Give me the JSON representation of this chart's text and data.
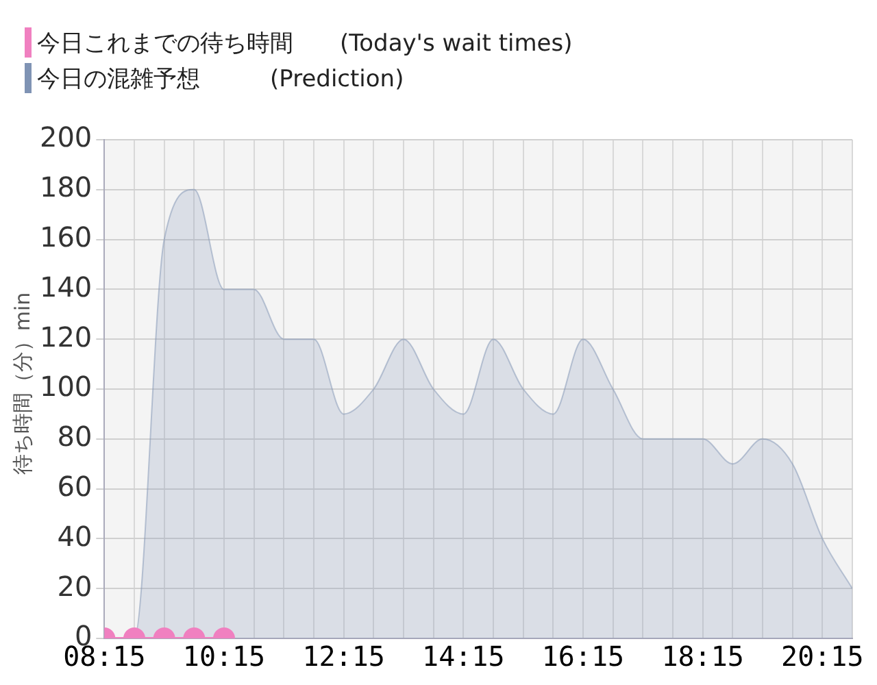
{
  "chart_data": {
    "type": "area",
    "ylabel": "待ち時間（分）min",
    "x": [
      8.25,
      8.75,
      9.25,
      9.75,
      10.25,
      10.75,
      11.25,
      11.75,
      12.25,
      12.75,
      13.25,
      13.75,
      14.25,
      14.75,
      15.25,
      15.75,
      16.25,
      16.75,
      17.25,
      17.75,
      18.25,
      18.75,
      19.25,
      19.75,
      20.25,
      20.75
    ],
    "series": [
      {
        "name": "今日の混雑予想　　　(Prediction)",
        "color": "#7f93b4",
        "marker": "none",
        "values": [
          0,
          0,
          160,
          180,
          140,
          140,
          120,
          120,
          90,
          100,
          120,
          100,
          90,
          120,
          100,
          90,
          120,
          100,
          80,
          80,
          80,
          70,
          80,
          70,
          40,
          20
        ]
      },
      {
        "name": "今日これまでの待ち時間　　(Today's wait times)",
        "type": "line",
        "color": "#f080c0",
        "marker": "circle",
        "x": [
          8.25,
          8.75,
          9.25,
          9.75,
          10.25
        ],
        "values": [
          0,
          0,
          0,
          0,
          0
        ]
      }
    ],
    "xlim": [
      8.25,
      20.75
    ],
    "xticks": [
      {
        "value": 8.25,
        "label": "08:15"
      },
      {
        "value": 8.75,
        "label": null
      },
      {
        "value": 9.25,
        "label": null
      },
      {
        "value": 9.75,
        "label": null
      },
      {
        "value": 10.25,
        "label": "10:15"
      },
      {
        "value": 10.75,
        "label": null
      },
      {
        "value": 11.25,
        "label": null
      },
      {
        "value": 11.75,
        "label": null
      },
      {
        "value": 12.25,
        "label": "12:15"
      },
      {
        "value": 12.75,
        "label": null
      },
      {
        "value": 13.25,
        "label": null
      },
      {
        "value": 13.75,
        "label": null
      },
      {
        "value": 14.25,
        "label": "14:15"
      },
      {
        "value": 14.75,
        "label": null
      },
      {
        "value": 15.25,
        "label": null
      },
      {
        "value": 15.75,
        "label": null
      },
      {
        "value": 16.25,
        "label": "16:15"
      },
      {
        "value": 16.75,
        "label": null
      },
      {
        "value": 17.25,
        "label": null
      },
      {
        "value": 17.75,
        "label": null
      },
      {
        "value": 18.25,
        "label": "18:15"
      },
      {
        "value": 18.75,
        "label": null
      },
      {
        "value": 19.25,
        "label": null
      },
      {
        "value": 19.75,
        "label": null
      },
      {
        "value": 20.25,
        "label": "20:15"
      },
      {
        "value": 20.75,
        "label": null
      }
    ],
    "ylim": [
      0,
      200
    ],
    "yticks": [
      0,
      20,
      40,
      60,
      80,
      100,
      120,
      140,
      160,
      180,
      200
    ],
    "grid": true,
    "legend": "top left"
  }
}
